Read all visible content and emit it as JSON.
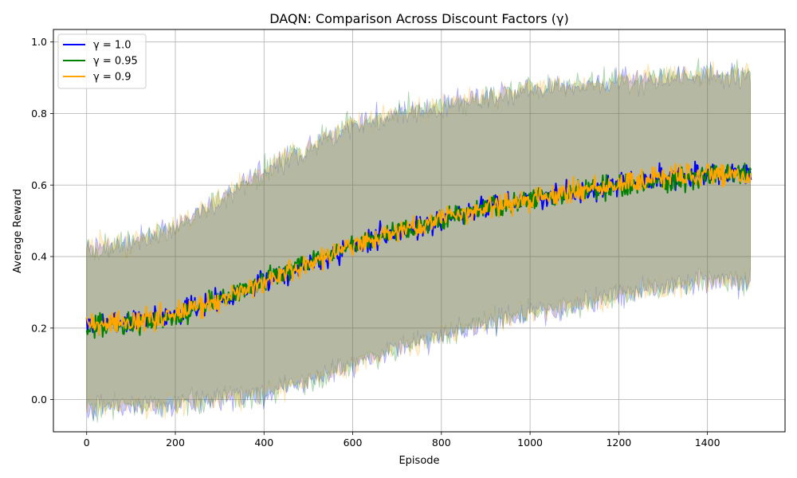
{
  "chart_data": {
    "type": "line",
    "title": "DAQN: Comparison Across Discount Factors (γ)",
    "xlabel": "Episode",
    "ylabel": "Average Reward",
    "xlim": [
      -75,
      1575
    ],
    "ylim": [
      -0.09,
      1.035
    ],
    "xticks": [
      0,
      200,
      400,
      600,
      800,
      1000,
      1200,
      1400
    ],
    "yticks": [
      0.0,
      0.2,
      0.4,
      0.6,
      0.8,
      1.0
    ],
    "grid": true,
    "legend_position": "upper-left",
    "episodes": [
      0,
      1499
    ],
    "series": [
      {
        "name": "γ = 1.0",
        "color": "#0000ff",
        "mean_points": [
          [
            0,
            0.21
          ],
          [
            100,
            0.22
          ],
          [
            200,
            0.24
          ],
          [
            300,
            0.28
          ],
          [
            400,
            0.33
          ],
          [
            500,
            0.38
          ],
          [
            600,
            0.43
          ],
          [
            700,
            0.47
          ],
          [
            800,
            0.5
          ],
          [
            900,
            0.54
          ],
          [
            1000,
            0.56
          ],
          [
            1100,
            0.58
          ],
          [
            1200,
            0.6
          ],
          [
            1300,
            0.62
          ],
          [
            1400,
            0.63
          ],
          [
            1499,
            0.63
          ]
        ],
        "band_upper": [
          [
            0,
            0.42
          ],
          [
            100,
            0.44
          ],
          [
            200,
            0.48
          ],
          [
            300,
            0.56
          ],
          [
            400,
            0.64
          ],
          [
            500,
            0.71
          ],
          [
            600,
            0.77
          ],
          [
            700,
            0.8
          ],
          [
            800,
            0.82
          ],
          [
            900,
            0.85
          ],
          [
            1000,
            0.87
          ],
          [
            1100,
            0.88
          ],
          [
            1200,
            0.89
          ],
          [
            1300,
            0.9
          ],
          [
            1400,
            0.91
          ],
          [
            1499,
            0.91
          ]
        ],
        "band_lower": [
          [
            0,
            -0.02
          ],
          [
            100,
            -0.02
          ],
          [
            200,
            -0.01
          ],
          [
            300,
            0.0
          ],
          [
            400,
            0.02
          ],
          [
            500,
            0.05
          ],
          [
            600,
            0.1
          ],
          [
            700,
            0.14
          ],
          [
            800,
            0.18
          ],
          [
            900,
            0.21
          ],
          [
            1000,
            0.24
          ],
          [
            1100,
            0.26
          ],
          [
            1200,
            0.29
          ],
          [
            1300,
            0.31
          ],
          [
            1400,
            0.33
          ],
          [
            1499,
            0.33
          ]
        ]
      },
      {
        "name": "γ = 0.95",
        "color": "#008000",
        "mean_points": [
          [
            0,
            0.2
          ],
          [
            100,
            0.21
          ],
          [
            200,
            0.23
          ],
          [
            300,
            0.28
          ],
          [
            400,
            0.33
          ],
          [
            500,
            0.38
          ],
          [
            600,
            0.43
          ],
          [
            700,
            0.47
          ],
          [
            800,
            0.5
          ],
          [
            900,
            0.54
          ],
          [
            1000,
            0.56
          ],
          [
            1100,
            0.58
          ],
          [
            1200,
            0.6
          ],
          [
            1300,
            0.61
          ],
          [
            1400,
            0.63
          ],
          [
            1499,
            0.63
          ]
        ],
        "band_upper": [
          [
            0,
            0.41
          ],
          [
            100,
            0.44
          ],
          [
            200,
            0.48
          ],
          [
            300,
            0.56
          ],
          [
            400,
            0.64
          ],
          [
            500,
            0.71
          ],
          [
            600,
            0.77
          ],
          [
            700,
            0.8
          ],
          [
            800,
            0.82
          ],
          [
            900,
            0.85
          ],
          [
            1000,
            0.87
          ],
          [
            1100,
            0.88
          ],
          [
            1200,
            0.89
          ],
          [
            1300,
            0.9
          ],
          [
            1400,
            0.91
          ],
          [
            1499,
            0.91
          ]
        ],
        "band_lower": [
          [
            0,
            -0.02
          ],
          [
            100,
            -0.02
          ],
          [
            200,
            -0.01
          ],
          [
            300,
            0.0
          ],
          [
            400,
            0.02
          ],
          [
            500,
            0.05
          ],
          [
            600,
            0.1
          ],
          [
            700,
            0.14
          ],
          [
            800,
            0.18
          ],
          [
            900,
            0.21
          ],
          [
            1000,
            0.24
          ],
          [
            1100,
            0.26
          ],
          [
            1200,
            0.29
          ],
          [
            1300,
            0.31
          ],
          [
            1400,
            0.33
          ],
          [
            1499,
            0.33
          ]
        ]
      },
      {
        "name": "γ = 0.9",
        "color": "#ffa500",
        "mean_points": [
          [
            0,
            0.21
          ],
          [
            100,
            0.22
          ],
          [
            200,
            0.24
          ],
          [
            300,
            0.28
          ],
          [
            400,
            0.33
          ],
          [
            500,
            0.38
          ],
          [
            600,
            0.43
          ],
          [
            700,
            0.47
          ],
          [
            800,
            0.5
          ],
          [
            900,
            0.54
          ],
          [
            1000,
            0.56
          ],
          [
            1100,
            0.58
          ],
          [
            1200,
            0.6
          ],
          [
            1300,
            0.62
          ],
          [
            1400,
            0.63
          ],
          [
            1499,
            0.62
          ]
        ],
        "band_upper": [
          [
            0,
            0.42
          ],
          [
            100,
            0.44
          ],
          [
            200,
            0.48
          ],
          [
            300,
            0.56
          ],
          [
            400,
            0.64
          ],
          [
            500,
            0.71
          ],
          [
            600,
            0.77
          ],
          [
            700,
            0.8
          ],
          [
            800,
            0.82
          ],
          [
            900,
            0.85
          ],
          [
            1000,
            0.87
          ],
          [
            1100,
            0.88
          ],
          [
            1200,
            0.89
          ],
          [
            1300,
            0.9
          ],
          [
            1400,
            0.91
          ],
          [
            1499,
            0.91
          ]
        ],
        "band_lower": [
          [
            0,
            -0.02
          ],
          [
            100,
            -0.02
          ],
          [
            200,
            -0.01
          ],
          [
            300,
            0.0
          ],
          [
            400,
            0.02
          ],
          [
            500,
            0.05
          ],
          [
            600,
            0.1
          ],
          [
            700,
            0.14
          ],
          [
            800,
            0.18
          ],
          [
            900,
            0.21
          ],
          [
            1000,
            0.24
          ],
          [
            1100,
            0.26
          ],
          [
            1200,
            0.29
          ],
          [
            1300,
            0.31
          ],
          [
            1400,
            0.33
          ],
          [
            1499,
            0.33
          ]
        ]
      }
    ]
  }
}
